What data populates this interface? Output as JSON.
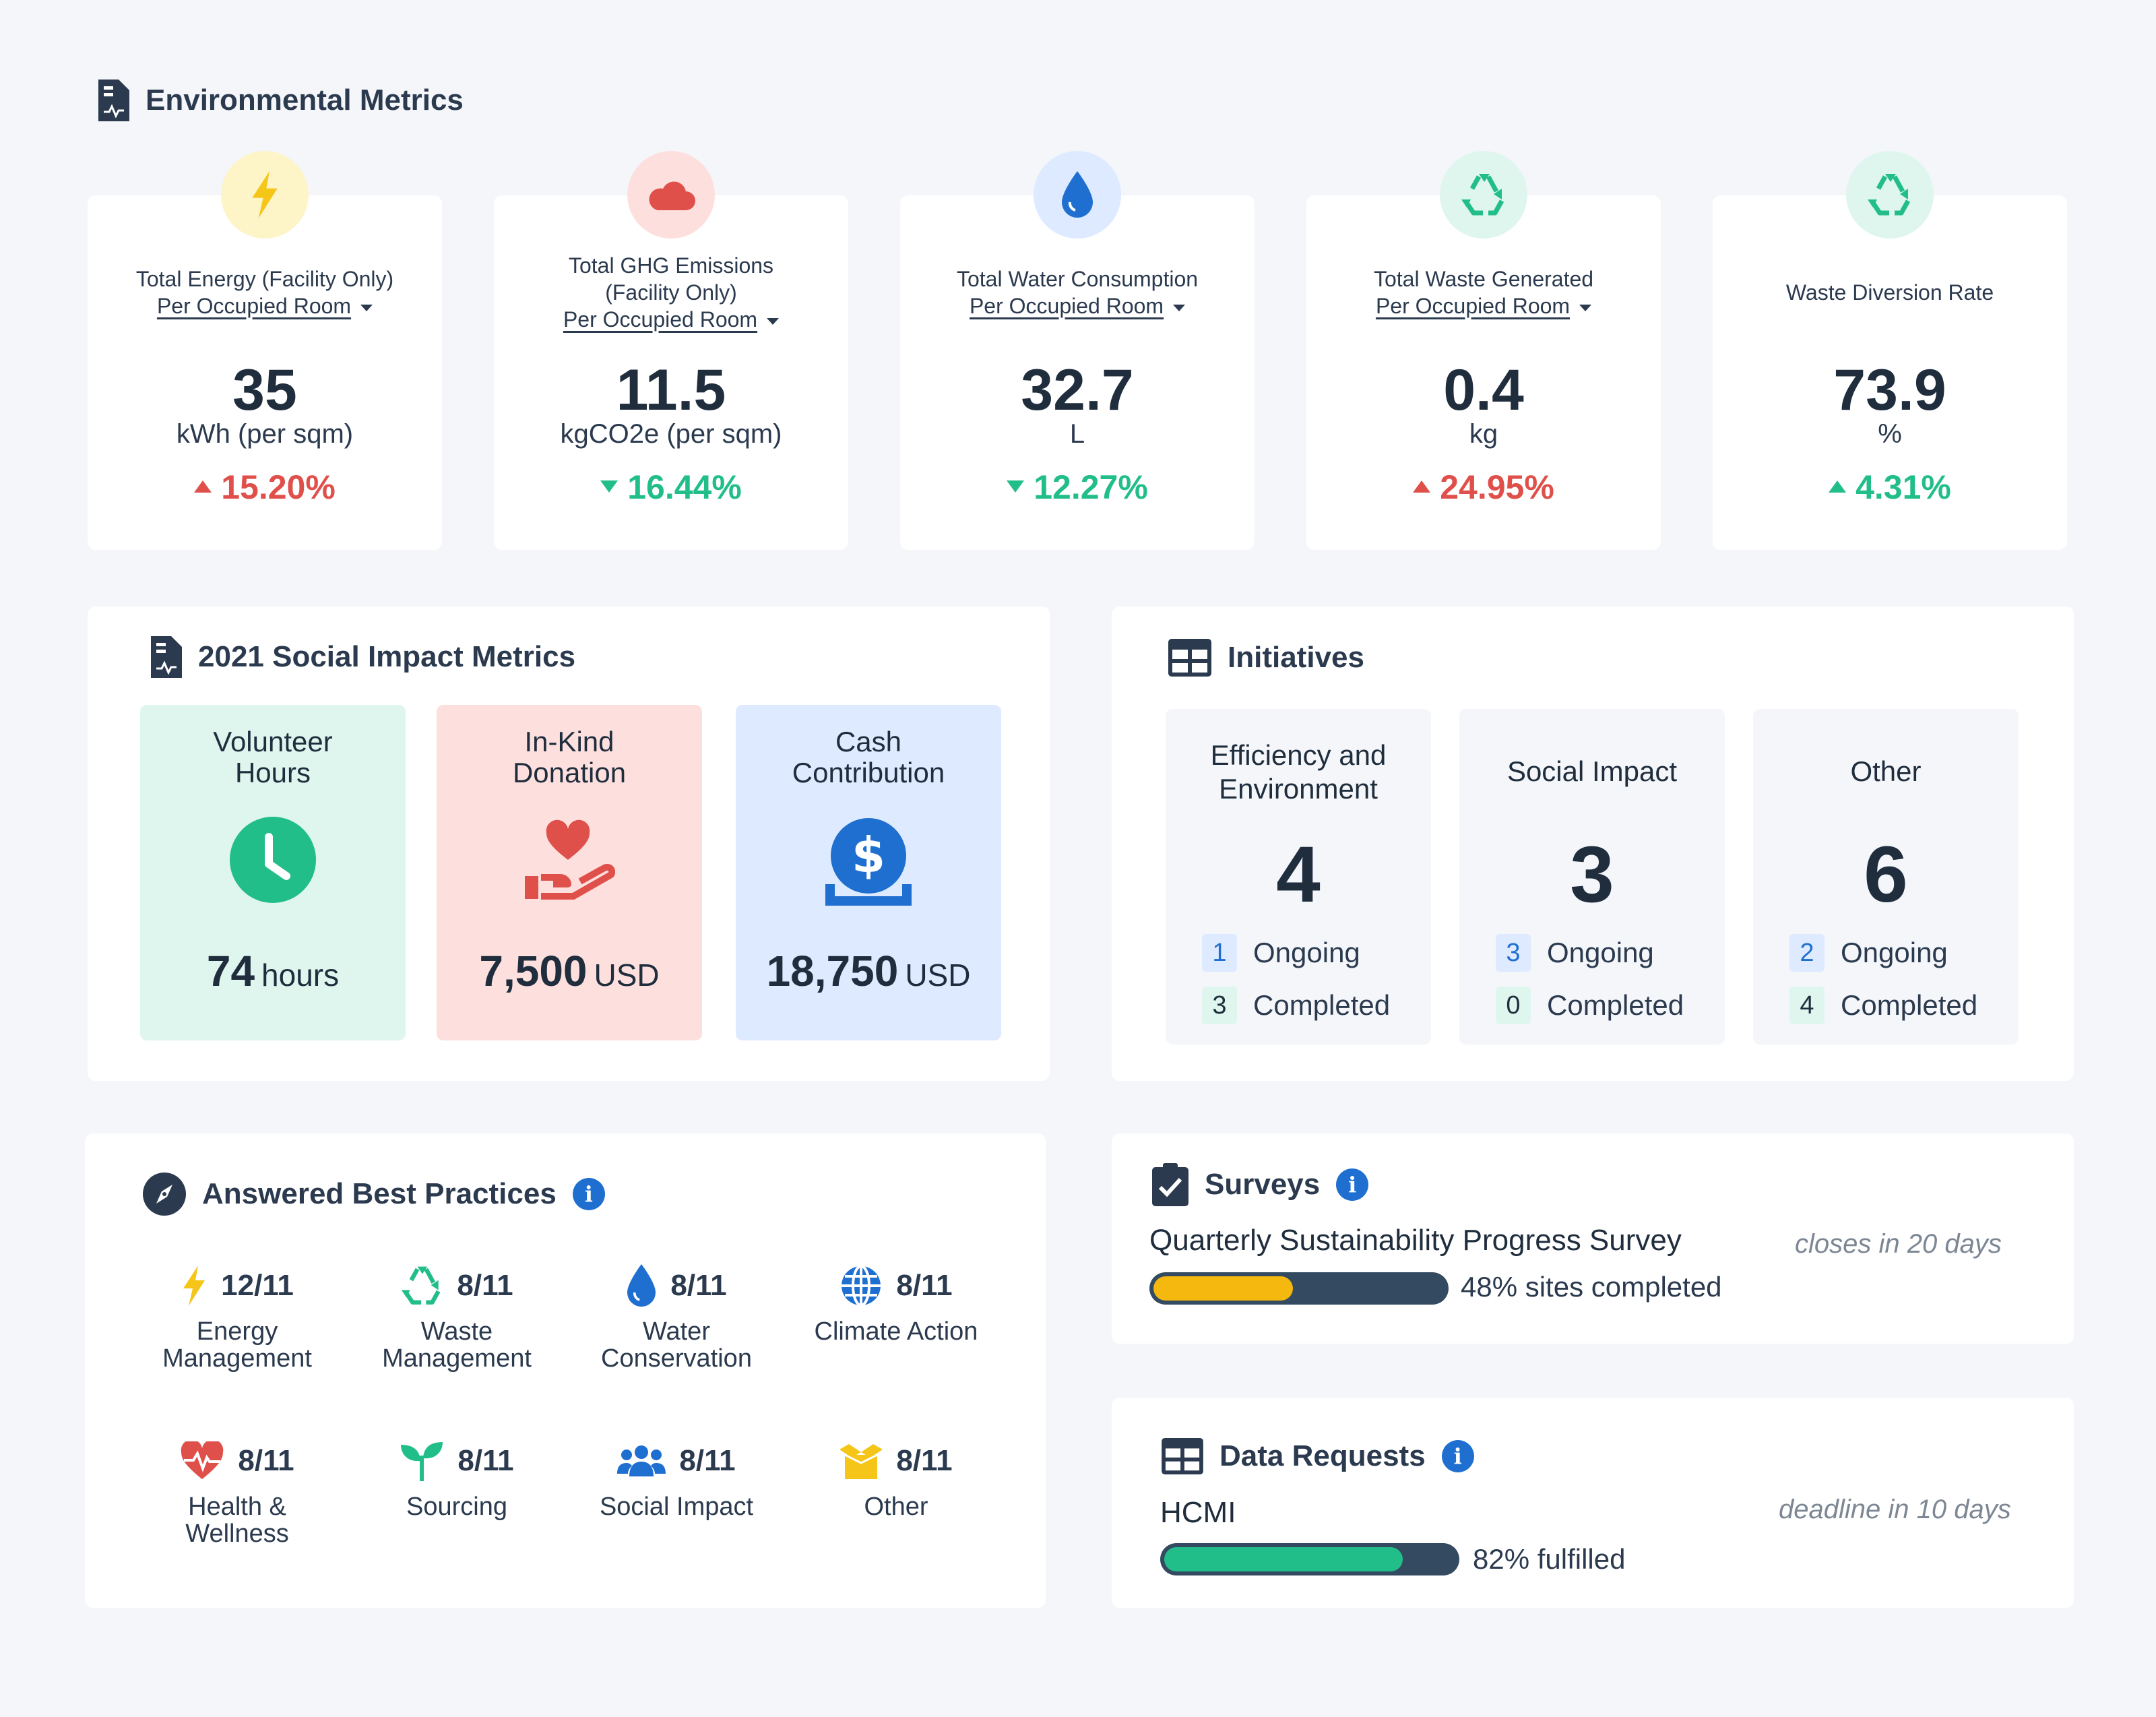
{
  "environmental": {
    "title": "Environmental Metrics",
    "cards": [
      {
        "label_line1": "Total Energy (Facility Only)",
        "selector": "Per Occupied Room",
        "value": "35",
        "unit": "kWh (per sqm)",
        "change": "15.20%",
        "direction": "up",
        "icon": "lightning-icon",
        "bubble_color": "#fdf4c7",
        "icon_color": "#f5c518"
      },
      {
        "label_line1": "Total GHG Emissions",
        "label_line2": "(Facility Only)",
        "selector": "Per Occupied Room",
        "value": "11.5",
        "unit": "kgCO2e (per sqm)",
        "change": "16.44%",
        "direction": "down",
        "icon": "cloud-icon",
        "bubble_color": "#fde0de",
        "icon_color": "#e0504b"
      },
      {
        "label_line1": "Total Water Consumption",
        "selector": "Per Occupied Room",
        "value": "32.7",
        "unit": "L",
        "change": "12.27%",
        "direction": "down",
        "icon": "water-drop-icon",
        "bubble_color": "#deeaff",
        "icon_color": "#1f6fd1"
      },
      {
        "label_line1": "Total Waste Generated",
        "selector": "Per Occupied Room",
        "value": "0.4",
        "unit": "kg",
        "change": "24.95%",
        "direction": "up",
        "icon": "recycle-icon",
        "bubble_color": "#dff6ee",
        "icon_color": "#22be8a"
      },
      {
        "label_line1": "Waste Diversion Rate",
        "value": "73.9",
        "unit": "%",
        "change": "4.31%",
        "direction": "up-good",
        "icon": "recycle-icon",
        "bubble_color": "#dff6ee",
        "icon_color": "#22be8a"
      }
    ]
  },
  "social": {
    "title": "2021 Social Impact Metrics",
    "tiles": [
      {
        "title_line1": "Volunteer",
        "title_line2": "Hours",
        "amount": "74",
        "unit": "hours",
        "icon": "clock-icon",
        "bg": "#dff6ee"
      },
      {
        "title_line1": "In-Kind",
        "title_line2": "Donation",
        "amount": "7,500",
        "unit": "USD",
        "icon": "heart-hand-icon",
        "bg": "#fde0de"
      },
      {
        "title_line1": "Cash",
        "title_line2": "Contribution",
        "amount": "18,750",
        "unit": "USD",
        "icon": "dollar-coin-icon",
        "bg": "#deeaff"
      }
    ]
  },
  "initiatives": {
    "title": "Initiatives",
    "ongoing_label": "Ongoing",
    "completed_label": "Completed",
    "items": [
      {
        "title_line1": "Efficiency and",
        "title_line2": "Environment",
        "count": "4",
        "ongoing": "1",
        "completed": "3"
      },
      {
        "title_line1": "Social Impact",
        "count": "3",
        "ongoing": "3",
        "completed": "0"
      },
      {
        "title_line1": "Other",
        "count": "6",
        "ongoing": "2",
        "completed": "4"
      }
    ]
  },
  "best_practices": {
    "title": "Answered Best Practices",
    "items": [
      {
        "score": "12/11",
        "label_line1": "Energy",
        "label_line2": "Management",
        "icon": "lightning-icon"
      },
      {
        "score": "8/11",
        "label_line1": "Waste",
        "label_line2": "Management",
        "icon": "recycle-icon"
      },
      {
        "score": "8/11",
        "label_line1": "Water",
        "label_line2": "Conservation",
        "icon": "water-drop-icon"
      },
      {
        "score": "8/11",
        "label_line1": "Climate Action",
        "icon": "globe-icon"
      },
      {
        "score": "8/11",
        "label_line1": "Health &",
        "label_line2": "Wellness",
        "icon": "heartbeat-icon"
      },
      {
        "score": "8/11",
        "label_line1": "Sourcing",
        "icon": "sprout-icon"
      },
      {
        "score": "8/11",
        "label_line1": "Social Impact",
        "icon": "people-icon"
      },
      {
        "score": "8/11",
        "label_line1": "Other",
        "icon": "box-icon"
      }
    ]
  },
  "surveys": {
    "title": "Surveys",
    "name": "Quarterly Sustainability Progress Survey",
    "note": "closes in 20 days",
    "progress_text": "48% sites completed",
    "progress": 0.48,
    "bar_color": "#f5b80f"
  },
  "data_requests": {
    "title": "Data Requests",
    "name": "HCMI",
    "note": "deadline in 10 days",
    "progress_text": "82% fulfilled",
    "progress": 0.82,
    "bar_color": "#22be8a"
  },
  "info_glyph": "i"
}
